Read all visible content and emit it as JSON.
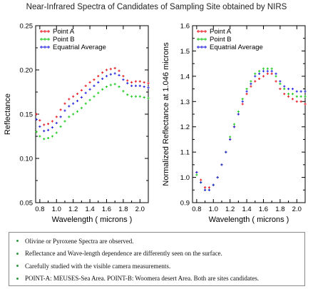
{
  "page_title": "Near-Infrared Spectra of Candidates of Sampling Site obtained by NIRS",
  "colors": {
    "point_a": "#e8202a",
    "point_b": "#22cc22",
    "average": "#2a2ae0"
  },
  "notes": [
    "Olivine or Pyroxene Spectra are observed.",
    "Reflectance and Wave-length dependence are differently seen on the surface.",
    "Carefully studied with the visible camera measurements.",
    "POINT-A: MEUSES-Sea Area. POINT-B: Woomera desert Area. Both are sites candidates."
  ],
  "chart_data": [
    {
      "type": "scatter",
      "title": "",
      "xlabel": "Wavelength ( microns )",
      "ylabel": "Reflectance",
      "xlim": [
        0.75,
        2.1
      ],
      "ylim": [
        0.05,
        0.25
      ],
      "xticks": [
        "0.8",
        "1.0",
        "1.2",
        "1.4",
        "1.6",
        "1.8",
        "2.0"
      ],
      "yticks": [
        "0.05",
        "0.10",
        "0.15",
        "0.20",
        "0.25"
      ],
      "legend_position": "top-left",
      "series": [
        {
          "name": "Point A",
          "color": "#e8202a",
          "x": [
            0.76,
            0.8,
            0.85,
            0.9,
            0.95,
            1.0,
            1.05,
            1.1,
            1.15,
            1.2,
            1.25,
            1.3,
            1.35,
            1.4,
            1.45,
            1.5,
            1.55,
            1.6,
            1.65,
            1.7,
            1.75,
            1.8,
            1.85,
            1.9,
            1.95,
            2.0,
            2.05,
            2.1
          ],
          "y": [
            0.15,
            0.143,
            0.138,
            0.139,
            0.142,
            0.147,
            0.155,
            0.162,
            0.167,
            0.17,
            0.173,
            0.177,
            0.182,
            0.186,
            0.189,
            0.193,
            0.197,
            0.2,
            0.201,
            0.202,
            0.199,
            0.193,
            0.188,
            0.186,
            0.187,
            0.187,
            0.186,
            0.185
          ]
        },
        {
          "name": "Point B",
          "color": "#22cc22",
          "x": [
            0.76,
            0.8,
            0.85,
            0.9,
            0.95,
            1.0,
            1.05,
            1.1,
            1.15,
            1.2,
            1.25,
            1.3,
            1.35,
            1.4,
            1.45,
            1.5,
            1.55,
            1.6,
            1.65,
            1.7,
            1.75,
            1.8,
            1.85,
            1.9,
            1.95,
            2.0,
            2.05,
            2.1
          ],
          "y": [
            0.13,
            0.125,
            0.122,
            0.123,
            0.125,
            0.129,
            0.136,
            0.142,
            0.147,
            0.15,
            0.153,
            0.157,
            0.162,
            0.166,
            0.17,
            0.174,
            0.178,
            0.181,
            0.183,
            0.184,
            0.181,
            0.176,
            0.172,
            0.17,
            0.17,
            0.17,
            0.169,
            0.168
          ]
        },
        {
          "name": "Equatrial Average",
          "color": "#2a2ae0",
          "x": [
            0.76,
            0.8,
            0.85,
            0.9,
            0.95,
            1.0,
            1.05,
            1.1,
            1.15,
            1.2,
            1.25,
            1.3,
            1.35,
            1.4,
            1.45,
            1.5,
            1.55,
            1.6,
            1.65,
            1.7,
            1.75,
            1.8,
            1.85,
            1.9,
            1.95,
            2.0,
            2.05,
            2.1
          ],
          "y": [
            0.144,
            0.136,
            0.131,
            0.132,
            0.135,
            0.14,
            0.147,
            0.154,
            0.159,
            0.162,
            0.165,
            0.169,
            0.174,
            0.178,
            0.182,
            0.186,
            0.19,
            0.193,
            0.195,
            0.196,
            0.194,
            0.189,
            0.185,
            0.182,
            0.182,
            0.182,
            0.181,
            0.18
          ]
        }
      ]
    },
    {
      "type": "scatter",
      "title": "",
      "xlabel": "Wavelength ( microns )",
      "ylabel": "Normalized Reflectance at 1.046 microns",
      "xlim": [
        0.75,
        2.1
      ],
      "ylim": [
        0.9,
        1.6
      ],
      "xticks": [
        "0.8",
        "1.0",
        "1.2",
        "1.4",
        "1.6",
        "1.8",
        "2.0"
      ],
      "yticks": [
        "0.9",
        "1.0",
        "1.1",
        "1.2",
        "1.3",
        "1.4",
        "1.5",
        "1.6"
      ],
      "legend_position": "top-left",
      "series": [
        {
          "name": "Point A",
          "color": "#e8202a",
          "x": [
            0.8,
            0.85,
            0.9,
            0.95,
            1.0,
            1.05,
            1.1,
            1.15,
            1.2,
            1.25,
            1.3,
            1.35,
            1.4,
            1.45,
            1.5,
            1.55,
            1.6,
            1.65,
            1.7,
            1.75,
            1.8,
            1.85,
            1.9,
            1.95,
            2.0,
            2.05,
            2.1
          ],
          "y": [
            1.02,
            0.99,
            0.96,
            0.96,
            0.97,
            1.0,
            1.05,
            1.1,
            1.15,
            1.2,
            1.25,
            1.29,
            1.33,
            1.36,
            1.38,
            1.39,
            1.4,
            1.41,
            1.41,
            1.38,
            1.35,
            1.33,
            1.32,
            1.31,
            1.3,
            1.3,
            1.29
          ]
        },
        {
          "name": "Point B",
          "color": "#22cc22",
          "x": [
            0.8,
            0.85,
            0.9,
            0.95,
            1.0,
            1.05,
            1.1,
            1.15,
            1.2,
            1.25,
            1.3,
            1.35,
            1.4,
            1.45,
            1.5,
            1.55,
            1.6,
            1.65,
            1.7,
            1.75,
            1.8,
            1.85,
            1.9,
            1.95,
            2.0,
            2.05,
            2.1
          ],
          "y": [
            1.01,
            0.98,
            0.95,
            0.95,
            0.97,
            1.0,
            1.05,
            1.1,
            1.16,
            1.21,
            1.26,
            1.31,
            1.35,
            1.38,
            1.41,
            1.42,
            1.43,
            1.43,
            1.43,
            1.4,
            1.37,
            1.35,
            1.33,
            1.33,
            1.32,
            1.32,
            1.32
          ]
        },
        {
          "name": "Equatrial Average",
          "color": "#2a2ae0",
          "x": [
            0.8,
            0.85,
            0.9,
            0.95,
            1.0,
            1.05,
            1.1,
            1.15,
            1.2,
            1.25,
            1.3,
            1.35,
            1.4,
            1.45,
            1.5,
            1.55,
            1.6,
            1.65,
            1.7,
            1.75,
            1.8,
            1.85,
            1.9,
            1.95,
            2.0,
            2.05,
            2.1
          ],
          "y": [
            1.02,
            0.98,
            0.95,
            0.95,
            0.97,
            1.0,
            1.05,
            1.1,
            1.15,
            1.2,
            1.25,
            1.3,
            1.34,
            1.37,
            1.4,
            1.41,
            1.42,
            1.42,
            1.42,
            1.41,
            1.38,
            1.36,
            1.35,
            1.35,
            1.34,
            1.34,
            1.34
          ]
        }
      ]
    }
  ]
}
